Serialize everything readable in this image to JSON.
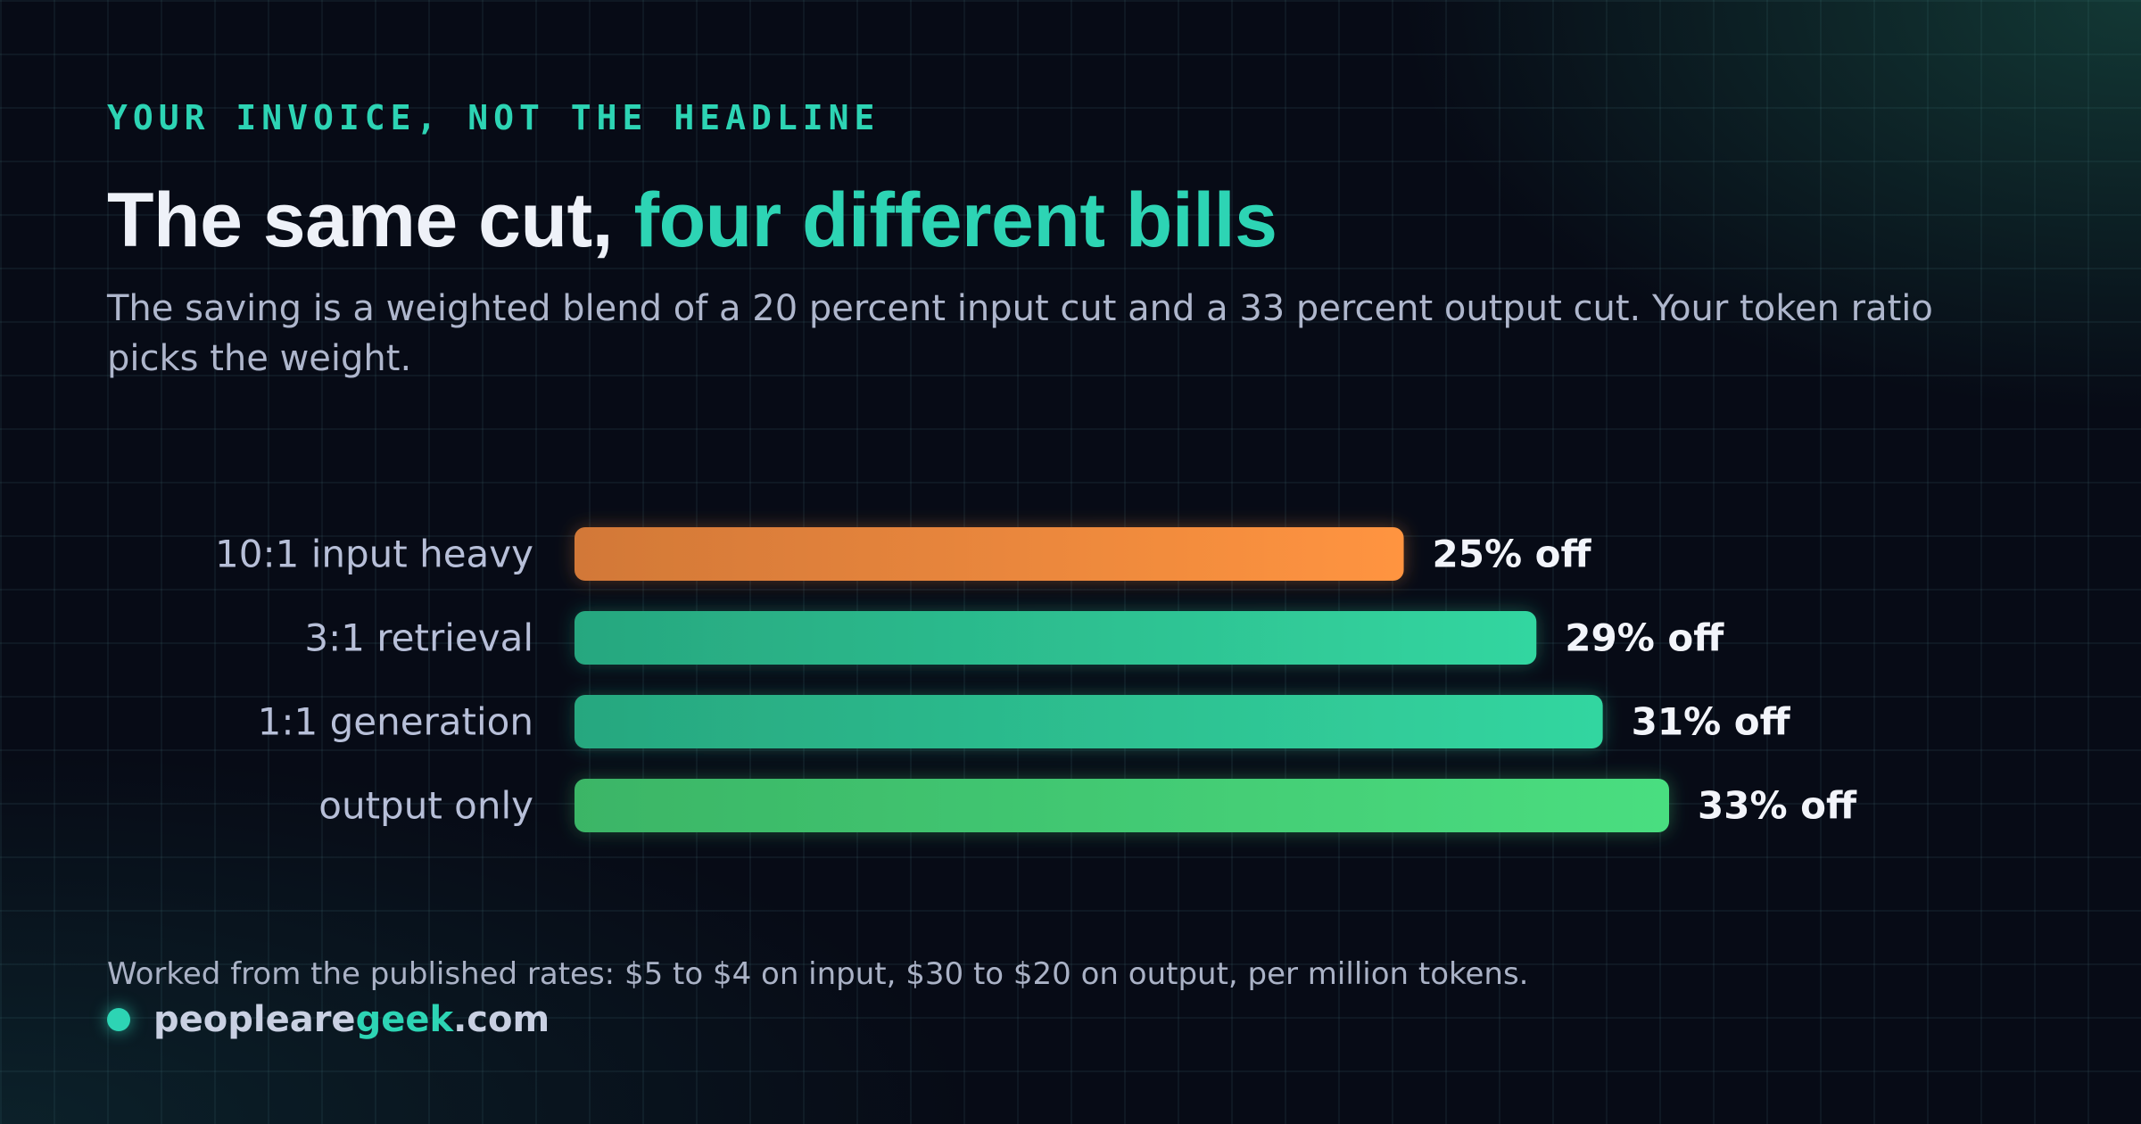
{
  "kicker": "YOUR INVOICE, NOT THE HEADLINE",
  "title_main": "The same cut, ",
  "title_accent": "four different bills",
  "subtitle": "The saving is a weighted blend of a 20 percent input cut and a 33 percent output cut. Your token ratio picks the weight.",
  "footnote": "Worked from the published rates: $5 to $4 on input, $30 to $20 on output, per million tokens.",
  "brand": {
    "pre": "peopleare",
    "highlight": "geek",
    "post": ".com"
  },
  "colors": {
    "accent": "#2dd4b4",
    "orange": "#ff9440",
    "teal": "#33d6a0",
    "green": "#4ade80"
  },
  "chart_data": {
    "type": "bar",
    "orientation": "horizontal",
    "categories": [
      "10:1 input heavy",
      "3:1 retrieval",
      "1:1 generation",
      "output only"
    ],
    "values": [
      25,
      29,
      31,
      33
    ],
    "value_labels": [
      "25% off",
      "29% off",
      "31% off",
      "33% off"
    ],
    "unit": "% off",
    "xlim": [
      0,
      33
    ],
    "bar_colors": [
      "orange",
      "teal",
      "teal",
      "green"
    ],
    "grid": false,
    "legend": "none"
  }
}
